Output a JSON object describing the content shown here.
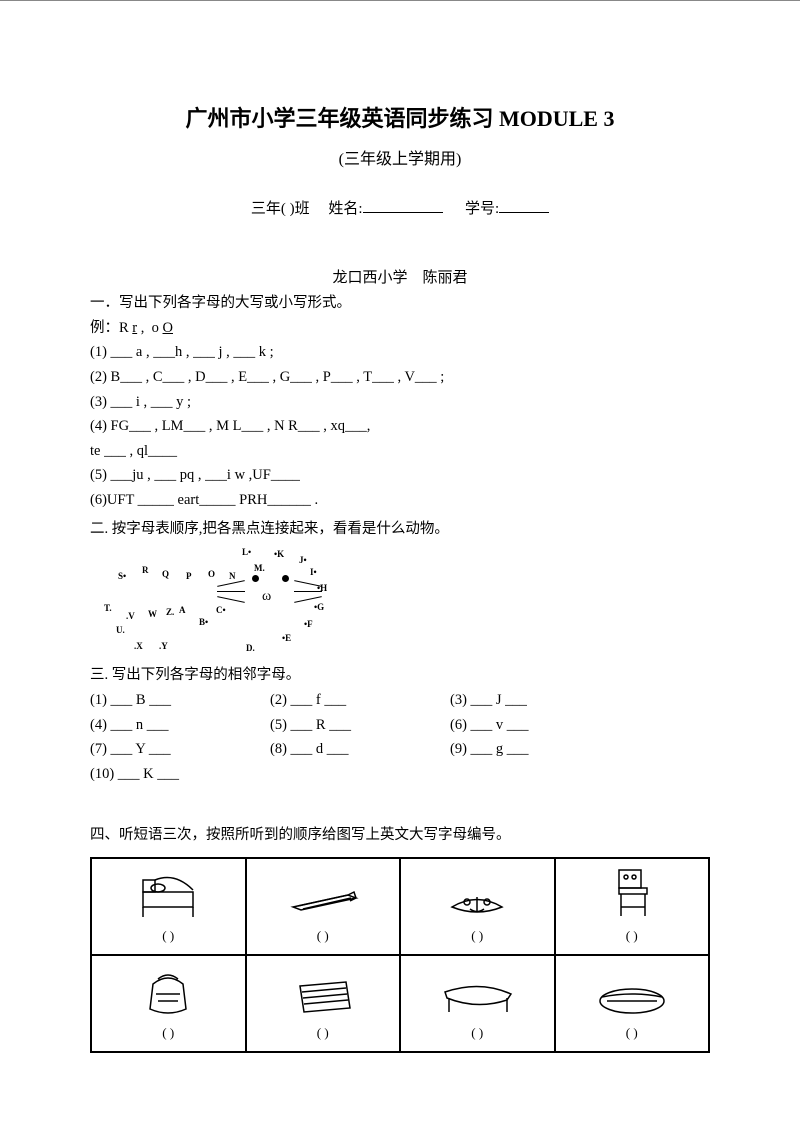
{
  "title": "广州市小学三年级英语同步练习 MODULE 3",
  "subtitle": "(三年级上学期用)",
  "info": {
    "class_prefix": "三年(",
    "class_suffix": ")班",
    "name_label": "姓名:",
    "number_label": "学号:"
  },
  "school": "龙口西小学",
  "teacher": "陈丽君",
  "q1": {
    "heading": "一．写出下列各字母的大写或小写形式。",
    "example_label": "例：",
    "example_text": "R r ,  o O",
    "items": [
      "(1)  ___ a ,  ___h ,   ___ j ,  ___ k ;",
      "(2)  B___ , C___ , D___  , E___  , G___ , P___  , T___ ,    V___ ;",
      "(3)  ___ i , ___ y ;",
      "(4)  FG___  , LM___  ,  M L___  ,  N R___ , xq___,",
      "      te ___ , ql____",
      "(5)  ___ju ,   ___ pq ,   ___i w  ,UF____",
      "(6)UFT _____    eart_____    PRH______ ."
    ]
  },
  "q2": {
    "heading": "二. 按字母表顺序,把各黑点连接起来，看看是什么动物。",
    "letters": [
      "A",
      "B",
      "C",
      "D",
      "E",
      "F",
      "G",
      "H",
      "I",
      "J",
      "K",
      "L",
      "M",
      "N",
      "O",
      "P",
      "Q",
      "R",
      "S",
      "T",
      "U",
      "V",
      "W",
      "X",
      "Y",
      "Z"
    ]
  },
  "q3": {
    "heading": "三. 写出下列各字母的相邻字母。",
    "items": [
      {
        "n": "(1)",
        "l": "B"
      },
      {
        "n": "(2)",
        "l": "f"
      },
      {
        "n": "(3)",
        "l": "J"
      },
      {
        "n": "(4)",
        "l": "n"
      },
      {
        "n": "(5)",
        "l": "R"
      },
      {
        "n": "(6)",
        "l": "v"
      },
      {
        "n": "(7)",
        "l": "Y"
      },
      {
        "n": "(8)",
        "l": "d"
      },
      {
        "n": "(9)",
        "l": "g"
      },
      {
        "n": "(10)",
        "l": "K"
      }
    ]
  },
  "q4": {
    "heading": "四、听短语三次，按照所听到的顺序给图写上英文大写字母编号。",
    "paren": "(        )",
    "items": [
      "bed",
      "pencil",
      "book",
      "chair",
      "bag",
      "notebook",
      "desk",
      "pencilcase"
    ]
  },
  "colors": {
    "text": "#000000",
    "bg": "#ffffff",
    "border": "#000000"
  }
}
